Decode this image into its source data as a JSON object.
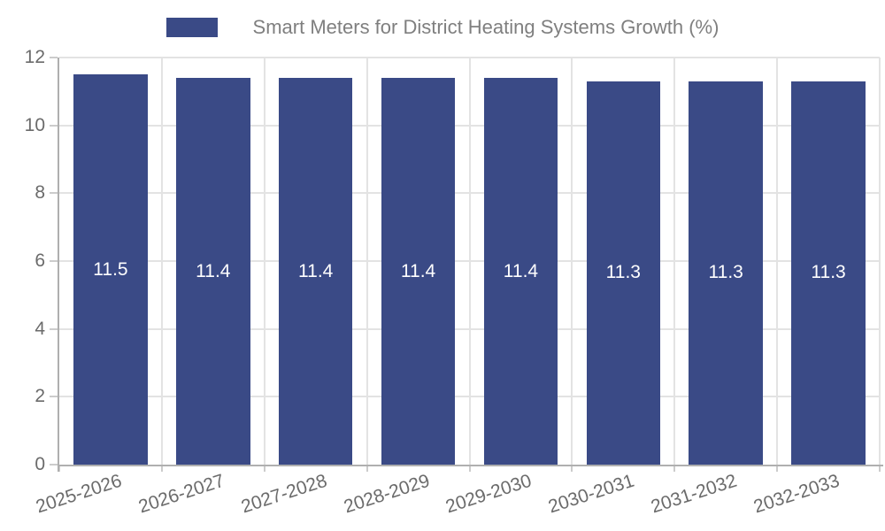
{
  "chart_data": {
    "type": "bar",
    "title": "Smart Meters for District Heating Systems Growth (%)",
    "legend_position": "top-center",
    "categories": [
      "2025-2026",
      "2026-2027",
      "2027-2028",
      "2028-2029",
      "2029-2030",
      "2030-2031",
      "2031-2032",
      "2032-2033"
    ],
    "values": [
      11.5,
      11.4,
      11.4,
      11.4,
      11.4,
      11.3,
      11.3,
      11.3
    ],
    "value_labels": [
      "11.5",
      "11.4",
      "11.4",
      "11.4",
      "11.4",
      "11.3",
      "11.3",
      "11.3"
    ],
    "xlabel": "",
    "ylabel": "",
    "ylim": [
      0,
      12
    ],
    "yticks": [
      0,
      2,
      4,
      6,
      8,
      10,
      12
    ],
    "grid": {
      "horizontal": true,
      "vertical_category_boundaries": true
    },
    "colors": {
      "bar": "#3A4A86",
      "legend_text": "#7F7F7F",
      "tick_text": "#6B6B6B",
      "gridline": "#E3E3E3",
      "spine": "#AFAFAF",
      "tick_mark": "#CCCCCC",
      "value_label_text": "#FFFFFF",
      "background": "#FFFFFF"
    }
  }
}
